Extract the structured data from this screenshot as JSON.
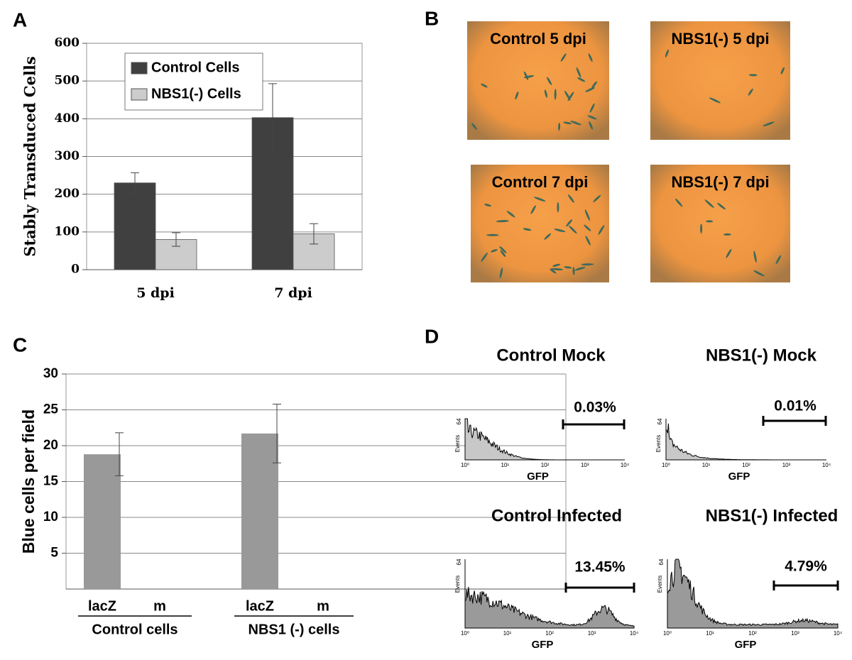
{
  "panel_labels": [
    "A",
    "B",
    "C",
    "D"
  ],
  "chart_data": [
    {
      "type": "bar",
      "y_label": "Stably Transduced Cells",
      "categories": [
        "5 dpi",
        "7 dpi"
      ],
      "series": [
        {
          "name": "Control Cells",
          "color": "#404040",
          "values": [
            230,
            403
          ],
          "errors": [
            27,
            90
          ]
        },
        {
          "name": "NBS1(-) Cells",
          "color": "#cccccc",
          "values": [
            80,
            95
          ],
          "errors": [
            18,
            27
          ]
        }
      ],
      "ylim": [
        0,
        600
      ],
      "yticks": [
        0,
        100,
        200,
        300,
        400,
        500,
        600
      ],
      "grid": true,
      "legend": "top-left"
    },
    {
      "type": "bar",
      "y_label": "Blue cells per field",
      "categories": [
        "lacZ",
        "m",
        "lacZ",
        "m"
      ],
      "groups": [
        "Control cells",
        "NBS1 (-) cells"
      ],
      "color": "#999999",
      "values": [
        18.8,
        0,
        21.7,
        0
      ],
      "errors": [
        3,
        null,
        4.1,
        null
      ],
      "ylim": [
        0,
        30
      ],
      "yticks": [
        5,
        10,
        15,
        20,
        25,
        30
      ],
      "grid": true
    }
  ],
  "micrographs": [
    {
      "label": "Control 5 dpi"
    },
    {
      "label": "NBS1(-) 5 dpi"
    },
    {
      "label": "Control 7 dpi"
    },
    {
      "label": "NBS1(-) 7 dpi"
    }
  ],
  "flow_histograms": [
    {
      "title": "Control Mock",
      "gate_label": "0.03%",
      "x_label": "GFP",
      "y_label": "Events",
      "y_max_label": "64",
      "x_tick_labels": [
        "10⁰",
        "10¹",
        "10²",
        "10³",
        "10⁴"
      ]
    },
    {
      "title": "NBS1(-) Mock",
      "gate_label": "0.01%",
      "x_label": "GFP",
      "y_label": "Events",
      "y_max_label": "64",
      "x_tick_labels": [
        "10⁰",
        "10¹",
        "10²",
        "10³",
        "10⁴"
      ]
    },
    {
      "title": "Control Infected",
      "gate_label": "13.45%",
      "x_label": "GFP",
      "y_label": "Events",
      "y_max_label": "64",
      "x_tick_labels": [
        "10⁰",
        "10¹",
        "10²",
        "10³",
        "10⁴"
      ]
    },
    {
      "title": "NBS1(-) Infected",
      "gate_label": "4.79%",
      "x_label": "GFP",
      "y_label": "Events",
      "y_max_label": "64",
      "x_tick_labels": [
        "10⁰",
        "10¹",
        "10²",
        "10³",
        "10⁴"
      ]
    }
  ]
}
